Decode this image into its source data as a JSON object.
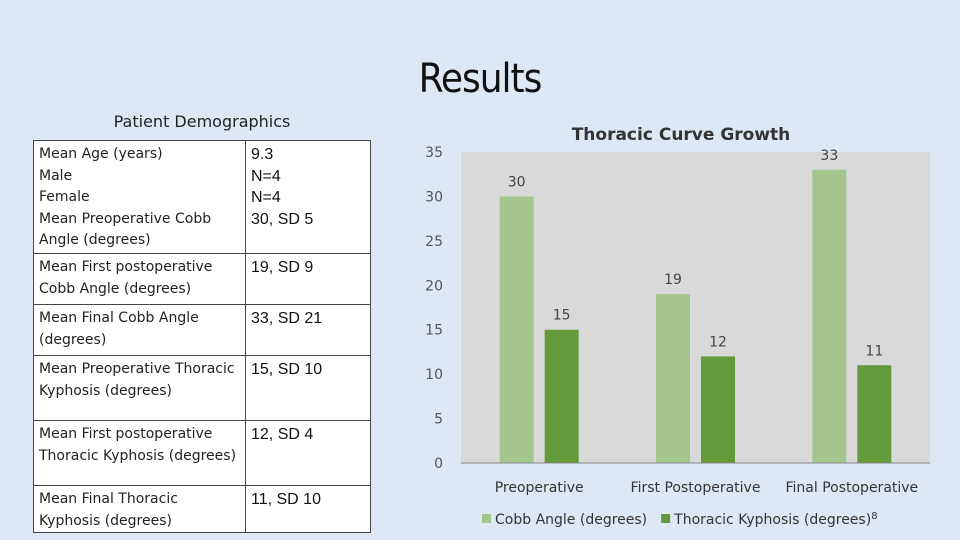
{
  "page": {
    "title": "Results"
  },
  "demographics": {
    "caption": "Patient Demographics",
    "rows": [
      {
        "labels": [
          "Mean Age (years)",
          "Male",
          "Female",
          "Mean Preoperative Cobb Angle (degrees)"
        ],
        "values": [
          "9.3",
          "N=4",
          "N=4",
          "30, SD 5"
        ]
      },
      {
        "labels": [
          "Mean First postoperative Cobb Angle (degrees)"
        ],
        "values": [
          "19, SD 9"
        ]
      },
      {
        "labels": [
          "Mean Final Cobb Angle (degrees)"
        ],
        "values": [
          "33, SD 21"
        ]
      },
      {
        "labels": [
          "Mean Preoperative Thoracic Kyphosis (degrees)"
        ],
        "values": [
          "15, SD 10"
        ]
      },
      {
        "labels": [
          "Mean First postoperative Thoracic Kyphosis (degrees)"
        ],
        "values": [
          "12, SD 4"
        ]
      },
      {
        "labels": [
          "Mean Final Thoracic Kyphosis (degrees)"
        ],
        "values": [
          "11, SD 10"
        ]
      }
    ]
  },
  "chart_data": {
    "type": "bar",
    "title": "Thoracic Curve Growth",
    "categories": [
      "Preoperative",
      "First Postoperative",
      "Final Postoperative"
    ],
    "series": [
      {
        "name": "Cobb Angle (degrees)",
        "values": [
          30,
          19,
          33
        ],
        "color": "#a5c58f"
      },
      {
        "name": "Thoracic Kyphosis (degrees)",
        "values": [
          15,
          12,
          11
        ],
        "color": "#629a3c"
      }
    ],
    "ylim": [
      0,
      35
    ],
    "yticks": [
      "0",
      "5",
      "10",
      "15",
      "20",
      "25",
      "30",
      "35"
    ],
    "grid": false,
    "legend": "bottom",
    "legend_superscript": "8",
    "plot_background": "#d9d9d9"
  }
}
